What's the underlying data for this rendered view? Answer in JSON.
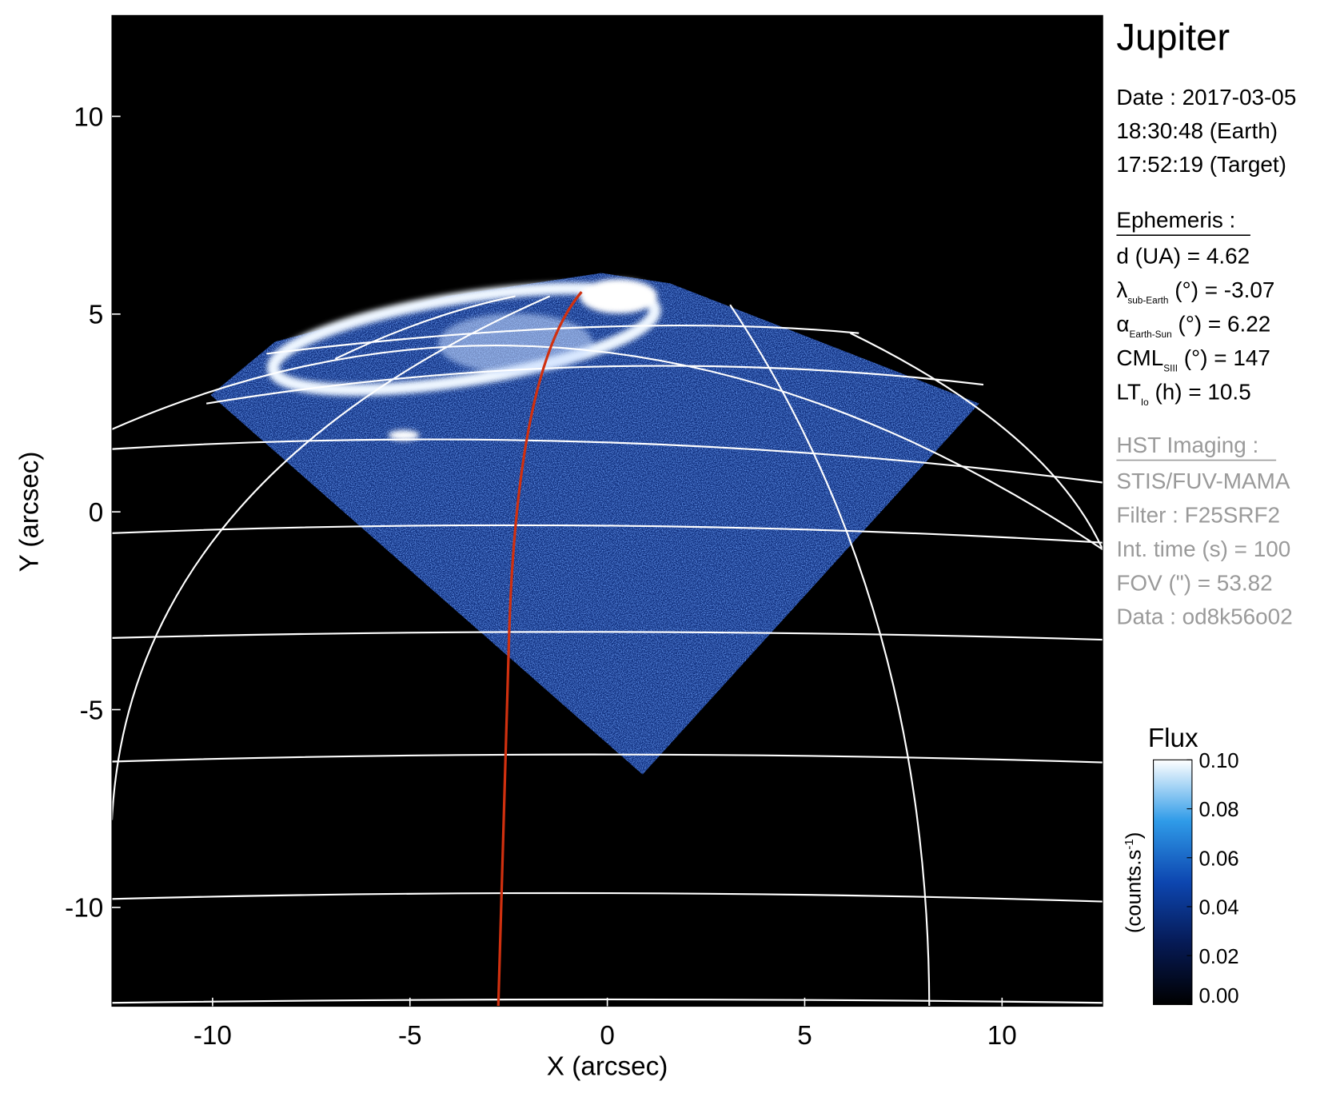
{
  "chart_data": {
    "type": "image",
    "xlabel": "X (arcsec)",
    "ylabel": "Y (arcsec)",
    "xlim": [
      -12.55,
      12.55
    ],
    "ylim": [
      -12.5,
      12.55
    ],
    "xticks": [
      -10,
      -5,
      0,
      5,
      10
    ],
    "yticks": [
      -10,
      -5,
      0,
      5,
      10
    ],
    "colorbar": {
      "title": "Flux",
      "unit": {
        "text": "(counts.s",
        "sup": "-1",
        "close": ")"
      },
      "lim": [
        0,
        0.1
      ],
      "ticks": [
        {
          "value": 0,
          "label": "0.00"
        },
        {
          "value": 0.02,
          "label": "0.02"
        },
        {
          "value": 0.04,
          "label": "0.04"
        },
        {
          "value": 0.06,
          "label": "0.06"
        },
        {
          "value": 0.08,
          "label": "0.08"
        },
        {
          "value": 0.1,
          "label": "0.10"
        }
      ]
    },
    "panel": {
      "target": "Jupiter",
      "date": [
        "Date : 2017-03-05",
        "18:30:48 (Earth)",
        "17:52:19 (Target)"
      ],
      "ephemeris_title": "Ephemeris :",
      "ephemeris": [
        {
          "symbol": "d (UA)    = 4.62"
        },
        {
          "symbol": "λ",
          "sub": "sub-Earth",
          "text": " (°) = -3.07"
        },
        {
          "symbol": "α",
          "sub": "Earth-Sun",
          "text": " (°) = 6.22"
        },
        {
          "symbol": "CML",
          "sub": "SIII",
          "text": " (°) = 147"
        },
        {
          "symbol": "LT",
          "sub": "Io",
          "text": " (h) = 10.5"
        }
      ],
      "imaging_title": "HST Imaging :",
      "imaging": [
        "STIS/FUV-MAMA",
        "Filter : F25SRF2",
        "Int. time (s) = 100",
        "FOV (\") = 53.82",
        "Data : od8k56o02"
      ]
    }
  }
}
